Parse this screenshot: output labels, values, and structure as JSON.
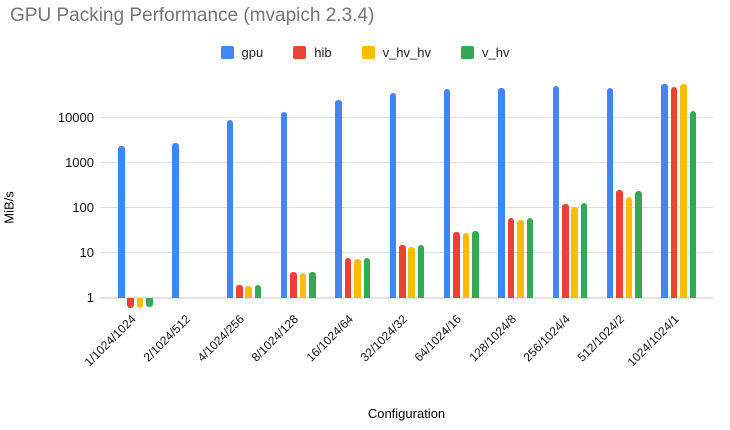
{
  "chart": {
    "title": "GPU Packing Performance (mvapich 2.3.4)",
    "xlabel": "Configuration",
    "ylabel": "MiB/s"
  },
  "chart_data": {
    "type": "bar",
    "title": "GPU Packing Performance (mvapich 2.3.4)",
    "xlabel": "Configuration",
    "ylabel": "MiB/s",
    "y_scale": "log",
    "yticks": [
      1,
      10,
      100,
      1000,
      10000
    ],
    "ylim": [
      0.45,
      100000
    ],
    "grid": true,
    "legend_position": "top",
    "categories": [
      "1/1024/1024",
      "2/1024/512",
      "4/1024/256",
      "8/1024/128",
      "16/1024/64",
      "32/1024/32",
      "64/1024/16",
      "128/1024/8",
      "256/1024/4",
      "512/1024/2",
      "1024/1024/1"
    ],
    "series": [
      {
        "name": "gpu",
        "color": "#4285F4",
        "values": [
          2300,
          2800,
          8800,
          13500,
          25000,
          36000,
          42000,
          46000,
          50000,
          46000,
          56000
        ]
      },
      {
        "name": "hib",
        "color": "#EA4335",
        "values": [
          0.6,
          null,
          1.9,
          3.7,
          7.6,
          15,
          29,
          60,
          120,
          250,
          48000
        ]
      },
      {
        "name": "v_hv_hv",
        "color": "#FBBC04",
        "values": [
          0.6,
          null,
          1.8,
          3.6,
          7.2,
          13.5,
          27,
          54,
          105,
          170,
          57000
        ]
      },
      {
        "name": "v_hv",
        "color": "#34A853",
        "values": [
          0.62,
          null,
          1.9,
          3.7,
          7.6,
          15,
          30,
          60,
          126,
          230,
          14000
        ]
      }
    ]
  }
}
